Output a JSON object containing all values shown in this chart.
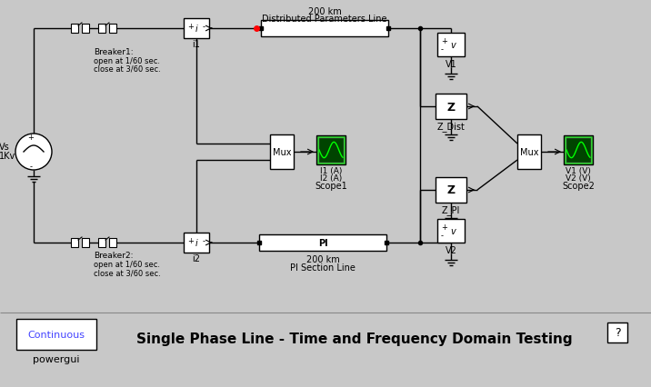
{
  "bg_color": "#c8c8c8",
  "title": "Single Phase Line - Time and Frequency Domain Testing",
  "title_fontsize": 11,
  "title_fontweight": "bold",
  "powergui_text": "Continuous",
  "powergui_label": "powergui",
  "question_mark": "?",
  "scope_green": "#33cc33",
  "scope_dark": "#004400",
  "scope_wave": "#00ff00",
  "blue_text": "#4444ff"
}
